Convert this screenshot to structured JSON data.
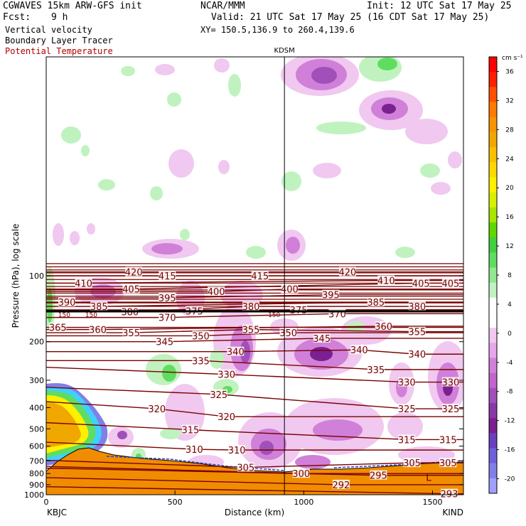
{
  "header": {
    "model": "CGWAVES 15km ARW-GFS init",
    "org": "NCAR/MMM",
    "init": "Init: 12 UTC Sat 17 May 25",
    "fcst_label": "Fcst:",
    "fcst_value": "9 h",
    "valid": "Valid: 21 UTC Sat 17 May 25 (16 CDT Sat 17 May 25)",
    "field1": "Vertical velocity",
    "field2": "Boundary Layer Tracer",
    "field3": "Potential Temperature",
    "xy": "XY= 150.5,136.9 to 260.4,139.6",
    "station_mid": "KDSM"
  },
  "colors": {
    "theta": "#7a0000",
    "terrain": "#f08c00",
    "up_light": "#a8f0a8",
    "up_mid": "#60dd60",
    "down_light": "#f0c8f0",
    "down_mid": "#d080d8",
    "down_dark": "#a050b8",
    "down_darker": "#7a2090"
  },
  "chart_data": {
    "type": "heatmap",
    "xlabel": "Distance (km)",
    "ylabel": "Pressure (hPa), log scale",
    "xlim": [
      0,
      1620
    ],
    "ylim": [
      1000,
      10
    ],
    "y_scale": "log",
    "x_ticks": [
      "0",
      "500",
      "1000",
      "1500"
    ],
    "x_tick_values": [
      0,
      500,
      1000,
      1500
    ],
    "y_ticks": [
      "100",
      "200",
      "300",
      "400",
      "500",
      "600",
      "700",
      "800",
      "900",
      "1000"
    ],
    "y_tick_values": [
      100,
      200,
      300,
      400,
      500,
      600,
      700,
      800,
      900,
      1000
    ],
    "left_endpoint": "KBJC",
    "right_endpoint": "KIND",
    "marker_line": {
      "label": "KDSM",
      "x": 925
    },
    "colorbar": {
      "unit": "cm s⁻¹",
      "labels": [
        "36",
        "32",
        "28",
        "24",
        "20",
        "16",
        "12",
        "8",
        "4",
        "0",
        "-4",
        "-8",
        "-12",
        "-16",
        "-20"
      ],
      "label_values": [
        36,
        32,
        28,
        24,
        20,
        16,
        12,
        8,
        4,
        0,
        -4,
        -8,
        -12,
        -16,
        -20
      ],
      "colors": [
        "#ff0000",
        "#ff2000",
        "#ff5000",
        "#ff7a00",
        "#f89400",
        "#f0a800",
        "#f8c000",
        "#ffd800",
        "#fff000",
        "#d8f000",
        "#a8e600",
        "#60d800",
        "#40d040",
        "#60dd60",
        "#90e890",
        "#c0f2c0",
        "#ffffff",
        "#ffffff",
        "#f0c8f0",
        "#e6a6ea",
        "#d080d8",
        "#c066cc",
        "#a050b8",
        "#8a38a8",
        "#7a2090",
        "#6a40c0",
        "#7060d8",
        "#8080e8",
        "#a0a0ff"
      ]
    },
    "theta_labels": [
      {
        "text": "420",
        "x": 340,
        "p": 96
      },
      {
        "text": "420",
        "x": 1170,
        "p": 96
      },
      {
        "text": "415",
        "x": 470,
        "p": 100
      },
      {
        "text": "415",
        "x": 830,
        "p": 100
      },
      {
        "text": "410",
        "x": 145,
        "p": 108
      },
      {
        "text": "410",
        "x": 1320,
        "p": 105
      },
      {
        "text": "405",
        "x": 330,
        "p": 115
      },
      {
        "text": "405",
        "x": 1455,
        "p": 108
      },
      {
        "text": "405",
        "x": 1570,
        "p": 108
      },
      {
        "text": "400",
        "x": 660,
        "p": 118
      },
      {
        "text": "400",
        "x": 945,
        "p": 115
      },
      {
        "text": "395",
        "x": 470,
        "p": 126
      },
      {
        "text": "395",
        "x": 1105,
        "p": 122
      },
      {
        "text": "390",
        "x": 80,
        "p": 132
      },
      {
        "text": "385",
        "x": 205,
        "p": 138
      },
      {
        "text": "385",
        "x": 1280,
        "p": 132
      },
      {
        "text": "380",
        "x": 325,
        "p": 146
      },
      {
        "text": "380",
        "x": 795,
        "p": 138
      },
      {
        "text": "380",
        "x": 1440,
        "p": 138
      },
      {
        "text": "375",
        "x": 575,
        "p": 145
      },
      {
        "text": "375",
        "x": 980,
        "p": 143
      },
      {
        "text": "370",
        "x": 470,
        "p": 155
      },
      {
        "text": "370",
        "x": 1130,
        "p": 149
      },
      {
        "text": "365",
        "x": 45,
        "p": 172
      },
      {
        "text": "360",
        "x": 200,
        "p": 176
      },
      {
        "text": "360",
        "x": 1310,
        "p": 170
      },
      {
        "text": "355",
        "x": 330,
        "p": 182
      },
      {
        "text": "355",
        "x": 795,
        "p": 176
      },
      {
        "text": "355",
        "x": 1440,
        "p": 180
      },
      {
        "text": "350",
        "x": 600,
        "p": 188
      },
      {
        "text": "350",
        "x": 940,
        "p": 182
      },
      {
        "text": "345",
        "x": 460,
        "p": 200
      },
      {
        "text": "345",
        "x": 1070,
        "p": 193
      },
      {
        "text": "340",
        "x": 735,
        "p": 222
      },
      {
        "text": "340",
        "x": 1215,
        "p": 218
      },
      {
        "text": "340",
        "x": 1440,
        "p": 228
      },
      {
        "text": "335",
        "x": 600,
        "p": 244
      },
      {
        "text": "335",
        "x": 1280,
        "p": 268
      },
      {
        "text": "330",
        "x": 700,
        "p": 282
      },
      {
        "text": "330",
        "x": 1400,
        "p": 306
      },
      {
        "text": "330",
        "x": 1570,
        "p": 306
      },
      {
        "text": "325",
        "x": 670,
        "p": 348
      },
      {
        "text": "325",
        "x": 1400,
        "p": 405
      },
      {
        "text": "325",
        "x": 1570,
        "p": 405
      },
      {
        "text": "320",
        "x": 430,
        "p": 405
      },
      {
        "text": "320",
        "x": 700,
        "p": 440
      },
      {
        "text": "315",
        "x": 560,
        "p": 505
      },
      {
        "text": "315",
        "x": 1400,
        "p": 560
      },
      {
        "text": "315",
        "x": 1560,
        "p": 560
      },
      {
        "text": "310",
        "x": 575,
        "p": 620
      },
      {
        "text": "310",
        "x": 740,
        "p": 625
      },
      {
        "text": "305",
        "x": 775,
        "p": 750
      },
      {
        "text": "305",
        "x": 1420,
        "p": 715
      },
      {
        "text": "305",
        "x": 1560,
        "p": 715
      },
      {
        "text": "300",
        "x": 990,
        "p": 800
      },
      {
        "text": "295",
        "x": 1290,
        "p": 815
      },
      {
        "text": "292",
        "x": 1145,
        "p": 900
      },
      {
        "text": "293",
        "x": 1565,
        "p": 990
      }
    ],
    "annotations": [
      {
        "text": "150",
        "x": 70,
        "p": 150
      },
      {
        "text": "150",
        "x": 175,
        "p": 150
      },
      {
        "text": "150",
        "x": 885,
        "p": 150
      },
      {
        "text": "L",
        "x": 1485,
        "p": 840
      }
    ]
  }
}
